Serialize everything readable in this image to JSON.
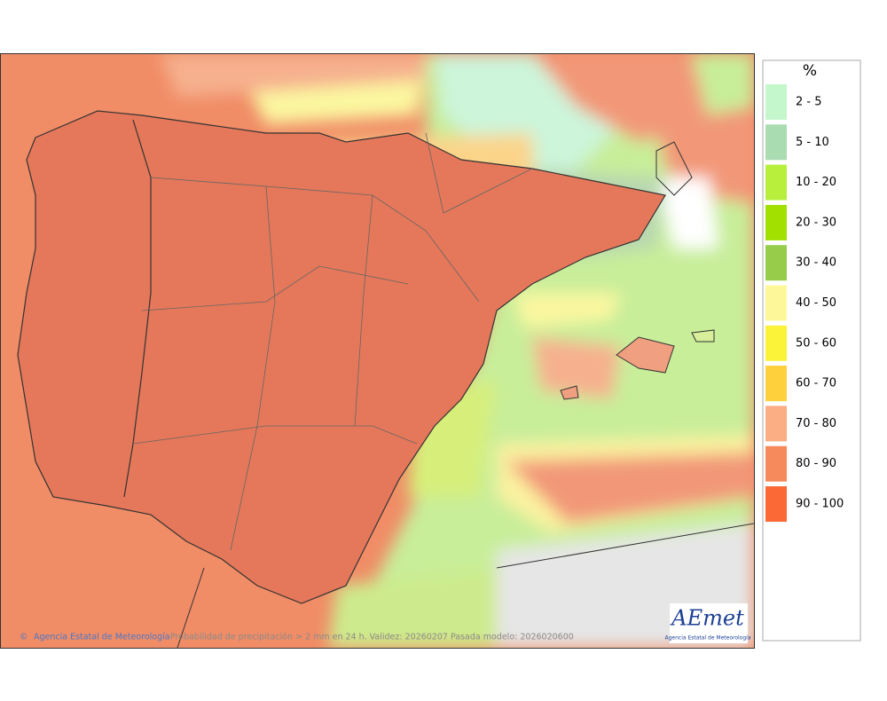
{
  "legend": {
    "title": "%",
    "items": [
      {
        "label": "2 - 5",
        "color": "#c4f7cc"
      },
      {
        "label": "5 - 10",
        "color": "#a9dcb0"
      },
      {
        "label": "10 - 20",
        "color": "#b8ef3c"
      },
      {
        "label": "20 - 30",
        "color": "#a2e000"
      },
      {
        "label": "30 - 40",
        "color": "#97cc4a"
      },
      {
        "label": "40 - 50",
        "color": "#fdf79a"
      },
      {
        "label": "50 - 60",
        "color": "#fbf33a"
      },
      {
        "label": "60 - 70",
        "color": "#fdd03c"
      },
      {
        "label": "70 - 80",
        "color": "#fbad84"
      },
      {
        "label": "80 - 90",
        "color": "#f68a5c"
      },
      {
        "label": "90 - 100",
        "color": "#fb6a36"
      }
    ]
  },
  "footer": {
    "copyright_symbol": "©",
    "agency": "Agencia Estatal de Meteorología",
    "caption": "Probabilidad de precipitación > 2 mm en 24 h. Validez: 20260207 Pasada modelo: 2026020600"
  },
  "logo": {
    "mark": "AEmet",
    "subtitle": "Agencia Estatal de Meteorología"
  }
}
